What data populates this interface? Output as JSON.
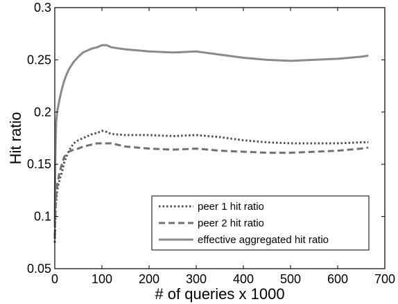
{
  "chart_data": {
    "type": "line",
    "title": "",
    "xlabel": "# of queries x 1000",
    "ylabel": "Hit ratio",
    "xlim": [
      0,
      700
    ],
    "ylim": [
      0.05,
      0.3
    ],
    "x_ticks": [
      0,
      100,
      200,
      300,
      400,
      500,
      600,
      700
    ],
    "y_ticks": [
      0.05,
      0.1,
      0.15,
      0.2,
      0.25,
      0.3
    ],
    "x_tick_labels": [
      "0",
      "100",
      "200",
      "300",
      "400",
      "500",
      "600",
      "700"
    ],
    "y_tick_labels": [
      "0.05",
      "0.1",
      "0.15",
      "0.2",
      "0.25",
      "0.3"
    ],
    "grid": false,
    "legend_position": "lower-right",
    "series": [
      {
        "name": "peer 1 hit ratio",
        "style": "dotted",
        "color": "#505050",
        "x": [
          0,
          2,
          5,
          10,
          15,
          20,
          30,
          40,
          50,
          60,
          70,
          80,
          90,
          100,
          110,
          120,
          150,
          200,
          250,
          300,
          350,
          400,
          450,
          500,
          550,
          600,
          650,
          665
        ],
        "y": [
          0.075,
          0.11,
          0.125,
          0.135,
          0.142,
          0.152,
          0.163,
          0.17,
          0.173,
          0.175,
          0.177,
          0.179,
          0.18,
          0.182,
          0.181,
          0.179,
          0.178,
          0.178,
          0.177,
          0.178,
          0.176,
          0.173,
          0.171,
          0.17,
          0.17,
          0.17,
          0.171,
          0.171
        ]
      },
      {
        "name": "peer 2 hit ratio",
        "style": "dashed",
        "color": "#707070",
        "x": [
          0,
          2,
          5,
          10,
          15,
          20,
          30,
          40,
          50,
          60,
          70,
          80,
          90,
          100,
          120,
          150,
          200,
          250,
          300,
          350,
          400,
          450,
          500,
          550,
          600,
          650,
          665
        ],
        "y": [
          0.08,
          0.115,
          0.13,
          0.142,
          0.15,
          0.157,
          0.162,
          0.164,
          0.165,
          0.167,
          0.168,
          0.169,
          0.17,
          0.17,
          0.17,
          0.167,
          0.165,
          0.164,
          0.165,
          0.163,
          0.162,
          0.161,
          0.161,
          0.162,
          0.163,
          0.165,
          0.166
        ]
      },
      {
        "name": "effective aggregated hit ratio",
        "style": "solid",
        "color": "#8a8a8a",
        "x": [
          0,
          1,
          2,
          3,
          5,
          8,
          10,
          15,
          20,
          25,
          30,
          40,
          50,
          60,
          70,
          80,
          90,
          100,
          110,
          120,
          150,
          200,
          250,
          300,
          350,
          400,
          450,
          500,
          550,
          600,
          650,
          665
        ],
        "y": [
          0.09,
          0.15,
          0.175,
          0.19,
          0.2,
          0.207,
          0.212,
          0.222,
          0.23,
          0.236,
          0.241,
          0.248,
          0.253,
          0.257,
          0.259,
          0.261,
          0.262,
          0.264,
          0.264,
          0.262,
          0.26,
          0.258,
          0.257,
          0.258,
          0.255,
          0.252,
          0.25,
          0.249,
          0.25,
          0.251,
          0.253,
          0.254
        ]
      }
    ]
  }
}
